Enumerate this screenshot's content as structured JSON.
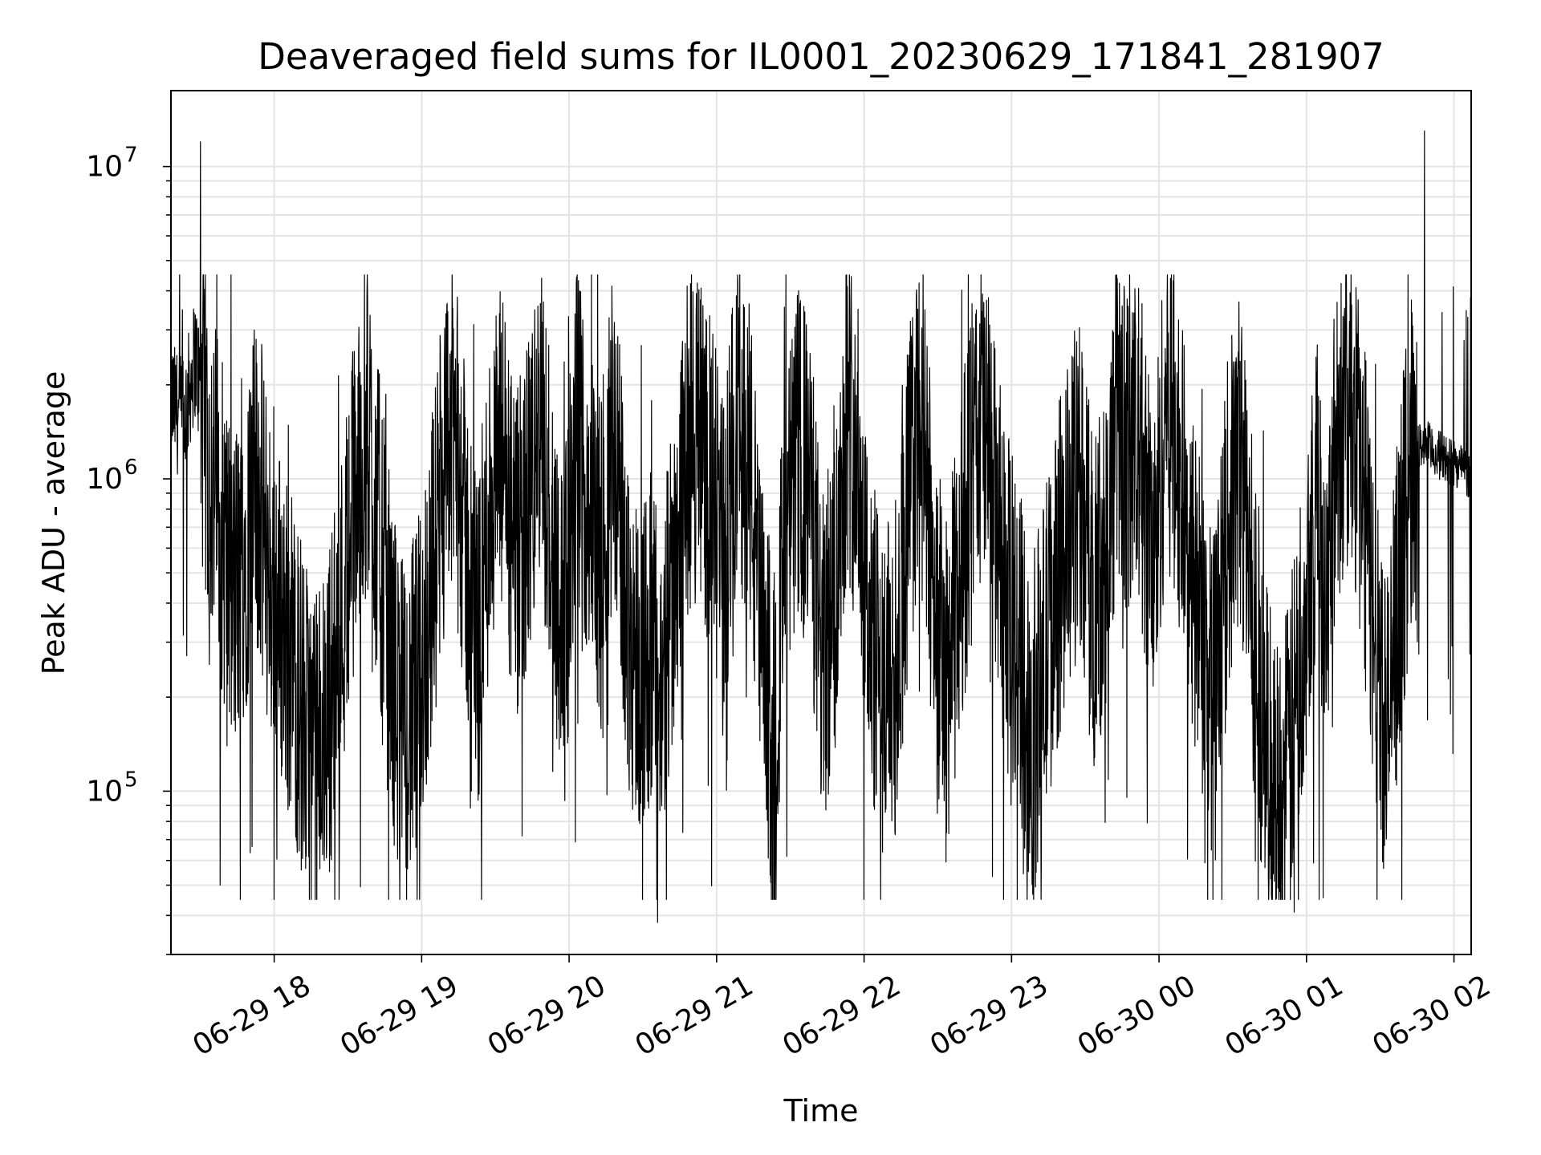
{
  "chart_data": {
    "type": "line",
    "title": "Deaveraged field sums for IL0001_20230629_171841_281907",
    "xlabel": "Time",
    "ylabel": "Peak ADU - average",
    "y_scale": "log",
    "ylim": [
      30000,
      17500000
    ],
    "xlim": [
      "06-29 17:18",
      "06-30 02:07"
    ],
    "x_tick_labels": [
      "06-29 18",
      "06-29 19",
      "06-29 20",
      "06-29 21",
      "06-29 22",
      "06-29 23",
      "06-30 00",
      "06-30 01",
      "06-30 02"
    ],
    "y_tick_labels": [
      {
        "base": "10",
        "exp": "5",
        "value": 100000
      },
      {
        "base": "10",
        "exp": "6",
        "value": 1000000
      },
      {
        "base": "10",
        "exp": "7",
        "value": 10000000
      }
    ],
    "grid": true,
    "line_color": "#000000",
    "series": [
      {
        "x": [
          "06-29 17:18",
          "06-29 17:23",
          "06-29 17:28",
          "06-29 17:33",
          "06-29 17:38",
          "06-29 17:43",
          "06-29 17:48",
          "06-29 17:53",
          "06-29 17:58",
          "06-29 18:03",
          "06-29 18:08",
          "06-29 18:13",
          "06-29 18:18",
          "06-29 18:23",
          "06-29 18:28",
          "06-29 18:33",
          "06-29 18:38",
          "06-29 18:43",
          "06-29 18:48",
          "06-29 18:53",
          "06-29 18:58",
          "06-29 19:03",
          "06-29 19:08",
          "06-29 19:13",
          "06-29 19:18",
          "06-29 19:23",
          "06-29 19:28",
          "06-29 19:33",
          "06-29 19:38",
          "06-29 19:43",
          "06-29 19:48",
          "06-29 19:53",
          "06-29 19:58",
          "06-29 20:03",
          "06-29 20:08",
          "06-29 20:13",
          "06-29 20:18",
          "06-29 20:23",
          "06-29 20:28",
          "06-29 20:33",
          "06-29 20:38",
          "06-29 20:43",
          "06-29 20:48",
          "06-29 20:53",
          "06-29 20:58",
          "06-29 21:03",
          "06-29 21:08",
          "06-29 21:13",
          "06-29 21:18",
          "06-29 21:23",
          "06-29 21:28",
          "06-29 21:33",
          "06-29 21:38",
          "06-29 21:43",
          "06-29 21:48",
          "06-29 21:53",
          "06-29 21:58",
          "06-29 22:03",
          "06-29 22:08",
          "06-29 22:13",
          "06-29 22:18",
          "06-29 22:23",
          "06-29 22:28",
          "06-29 22:33",
          "06-29 22:38",
          "06-29 22:43",
          "06-29 22:48",
          "06-29 22:53",
          "06-29 22:58",
          "06-29 23:03",
          "06-29 23:08",
          "06-29 23:13",
          "06-29 23:18",
          "06-29 23:23",
          "06-29 23:28",
          "06-29 23:33",
          "06-29 23:38",
          "06-29 23:43",
          "06-29 23:48",
          "06-29 23:53",
          "06-29 23:58",
          "06-30 00:03",
          "06-30 00:08",
          "06-30 00:13",
          "06-30 00:18",
          "06-30 00:23",
          "06-30 00:28",
          "06-30 00:33",
          "06-30 00:38",
          "06-30 00:43",
          "06-30 00:48",
          "06-30 00:53",
          "06-30 00:58",
          "06-30 01:03",
          "06-30 01:08",
          "06-30 01:13",
          "06-30 01:18",
          "06-30 01:23",
          "06-30 01:28",
          "06-30 01:33",
          "06-30 01:38",
          "06-30 01:43",
          "06-30 01:48",
          "06-30 01:53",
          "06-30 01:58",
          "06-30 02:03",
          "06-30 02:07"
        ],
        "y": [
          1800000,
          1500000,
          2500000,
          1200000,
          800000,
          400000,
          600000,
          1000000,
          500000,
          350000,
          250000,
          150000,
          120000,
          200000,
          400000,
          900000,
          1500000,
          600000,
          250000,
          150000,
          200000,
          400000,
          900000,
          1500000,
          600000,
          300000,
          900000,
          1200000,
          500000,
          800000,
          1500000,
          700000,
          300000,
          1400000,
          900000,
          500000,
          1600000,
          400000,
          250000,
          300000,
          200000,
          600000,
          1200000,
          1500000,
          900000,
          500000,
          1600000,
          1300000,
          300000,
          150000,
          600000,
          1200000,
          900000,
          250000,
          400000,
          1800000,
          1000000,
          300000,
          200000,
          250000,
          900000,
          1500000,
          500000,
          200000,
          400000,
          1000000,
          1600000,
          800000,
          400000,
          300000,
          150000,
          250000,
          450000,
          700000,
          1000000,
          400000,
          600000,
          1500000,
          1300000,
          1100000,
          500000,
          2000000,
          1100000,
          500000,
          300000,
          200000,
          700000,
          1200000,
          400000,
          150000,
          90000,
          120000,
          300000,
          900000,
          500000,
          1500000,
          1800000,
          900000,
          300000,
          150000,
          500000,
          1200000,
          1300000,
          1200000,
          1150000,
          1100000,
          1000000
        ]
      }
    ],
    "spikes": [
      {
        "x": "06-29 17:30",
        "y": 12000000
      },
      {
        "x": "06-30 01:48",
        "y": 13000000
      },
      {
        "x": "06-29 17:38",
        "y": 50000
      },
      {
        "x": "06-29 20:36",
        "y": 38000
      },
      {
        "x": "06-30 00:55",
        "y": 41000
      }
    ]
  }
}
